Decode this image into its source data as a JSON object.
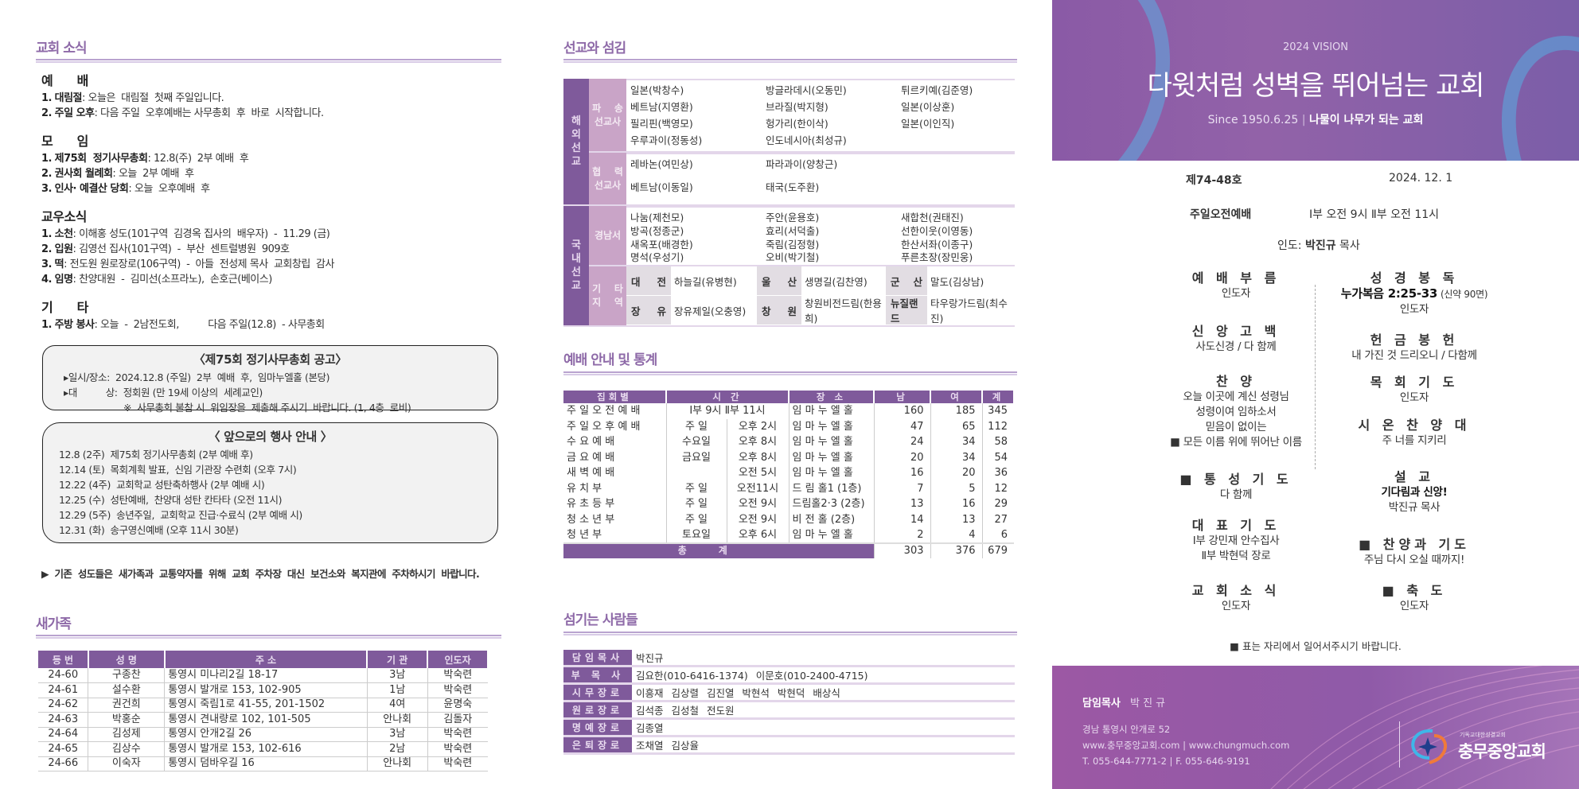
{
  "left": {
    "news_title": "교회 소식",
    "groups": [
      {
        "title": "예      배",
        "items": [
          {
            "num": "1.",
            "label": "대림절",
            "text": "오늘은  대림절  첫째 주일입니다."
          },
          {
            "num": "2.",
            "label": "주일 오후",
            "text": "다음 주일  오후예배는 사무총회  후  바로  시작합니다."
          }
        ]
      },
      {
        "title": "모      임",
        "items": [
          {
            "num": "1.",
            "label": "제75회  정기사무총회",
            "text": "12.8(주)  2부 예배  후"
          },
          {
            "num": "2.",
            "label": "권사회 월례회",
            "text": "오늘  2부 예배  후"
          },
          {
            "num": "3.",
            "label": "인사· 예결산 당회",
            "text": "오늘  오후예배  후"
          }
        ]
      },
      {
        "title": "교우소식",
        "items": [
          {
            "num": "1.",
            "label": "소천",
            "text": "이해홍 성도(101구역  김경옥 집사의  배우자)  -  11.29 (금)"
          },
          {
            "num": "2.",
            "label": "입원",
            "text": "김영선 집사(101구역)  -  부산  센트럴병원  909호"
          },
          {
            "num": "3.",
            "label": "떡",
            "text": "전도원 원로장로(106구역)  -  아들  전성제 목사  교회창립  감사"
          },
          {
            "num": "4.",
            "label": "임명",
            "text": "찬양대원  -  김미선(소프라노),  손호근(베이스)"
          }
        ]
      },
      {
        "title": "기      타",
        "items": [
          {
            "num": "1.",
            "label": "주방 봉사",
            "text": "오늘  -  2남전도회,          다음 주일(12.8)  - 사무총회"
          }
        ]
      }
    ],
    "assembly_box": {
      "title": "〈제75회  정기사무총회  공고〉",
      "lines": [
        "▸일시/장소:  2024.12.8 (주일)  2부  예배  후,  임마누엘홀 (본당)",
        "▸대          상:  정회원 (만 19세 이상의  세례교인)",
        "                     ※  사무총회 불참 시  위임장을  제출해 주시기  바랍니다. (1, 4층  로비)"
      ]
    },
    "events_box": {
      "title": "〈 앞으로의 행사 안내 〉",
      "lines": [
        "12.8 (2주)  제75회 정기사무총회 (2부 예배 후)",
        "12.14 (토)  목회계획 발표,  신임 기관장 수련회 (오후 7시)",
        "12.22 (4주)  교회학교 성탄축하행사 (2부 예배 시)",
        "12.25 (수)  성탄예배,  찬양대 성탄 칸타타 (오전 11시)",
        "12.29 (5주)  송년주일,  교회학교 진급·수료식 (2부 예배 시)",
        "12.31 (화)  송구영신예배 (오후 11시 30분)"
      ]
    },
    "parking_notice": "▶  기존  성도들은  새가족과  교통약자를  위해  교회  주차장  대신  보건소와  복지관에  주차하시기  바랍니다.",
    "newfamily_title": "새가족",
    "newfamily_headers": [
      "등 번",
      "성 명",
      "주 소",
      "기 관",
      "인도자"
    ],
    "newfamily_rows": [
      [
        "24-60",
        "구종찬",
        "통영시 미나리2길  18-17",
        "3남",
        "박숙련"
      ],
      [
        "24-61",
        "설수환",
        "통영시 발개로 153,  102-905",
        "1남",
        "박숙련"
      ],
      [
        "24-62",
        "권건희",
        "통영시 죽림1로  41-55,  201-1502",
        "4여",
        "윤명숙"
      ],
      [
        "24-63",
        "박홍순",
        "통영시 견내량로  102,  101-505",
        "안나회",
        "김돌자"
      ],
      [
        "24-64",
        "김성제",
        "통영시 안개2길  26",
        "3남",
        "박숙련"
      ],
      [
        "24-65",
        "김상수",
        "통영시 발개로 153,  102-616",
        "2남",
        "박숙련"
      ],
      [
        "24-66",
        "이숙자",
        "통영시 덤바우길  16",
        "안나회",
        "박숙련"
      ]
    ]
  },
  "center": {
    "mission_title": "선교와 섬김",
    "overseas_label": "해\n외\n선\n교",
    "domestic_label": "국\n내\n선\n교",
    "sent_label": "파    송\n선교사",
    "sent": [
      "일본(박창수)",
      "방글라데시(오동민)",
      "튀르키예(김준영)",
      "베트남(지영환)",
      "브라질(박지형)",
      "일본(이상훈)",
      "필리핀(백영모)",
      "헝가리(한이삭)",
      "일본(이인직)",
      "우루과이(정동성)",
      "인도네시아(최성규)",
      ""
    ],
    "coop_label": "협    력\n선교사",
    "coop": [
      "레바논(여민상)",
      "파라과이(양창근)",
      "",
      "베트남(이동일)",
      "태국(도주환)",
      ""
    ],
    "gyeongnam_label": "경남서",
    "gyeongnam": [
      "나눔(제천모)",
      "주안(윤용호)",
      "새합천(권태진)",
      "방곡(정종군)",
      "효리(서덕출)",
      "선한이웃(이영동)",
      "새옥포(배경한)",
      "죽림(김정형)",
      "한산서좌(이종구)",
      "명석(우성기)",
      "오비(박기철)",
      "푸른초장(장민웅)"
    ],
    "other_label": "기    타\n지    역",
    "other": [
      [
        [
          "대",
          "전"
        ],
        "하늘길(유병현)"
      ],
      [
        [
          "울",
          "산"
        ],
        "생명길(김찬영)"
      ],
      [
        [
          "군",
          "산"
        ],
        "말도(김상남)"
      ],
      [
        [
          "장",
          "유"
        ],
        "장유제일(오충영)"
      ],
      [
        [
          "창",
          "원"
        ],
        "창원비전드림(한용희)"
      ],
      [
        [
          "뉴질랜드"
        ],
        "타우랑가드림(최수진)"
      ]
    ],
    "worship_title": "예배 안내 및 통계",
    "worship_headers": [
      "집회별",
      "시 간",
      "장 소",
      "남",
      "여",
      "계"
    ],
    "worship_rows": [
      [
        "주 일 오 전 예 배",
        "Ⅰ부  9시    Ⅱ부  11시",
        "",
        "임 마 누 엘 홀",
        "160",
        "185",
        "345"
      ],
      [
        "주 일 오 후 예 배",
        "주    일",
        "오후  2시",
        "임 마 누 엘 홀",
        "47",
        "65",
        "112"
      ],
      [
        "수     요     예     배",
        "수요일",
        "오후  8시",
        "임 마 누 엘 홀",
        "24",
        "34",
        "58"
      ],
      [
        "금     요     예     배",
        "금요일",
        "오후  8시",
        "임 마 누 엘 홀",
        "20",
        "34",
        "54"
      ],
      [
        "새     벽     예     배",
        "",
        "오전  5시",
        "임 마 누 엘 홀",
        "16",
        "20",
        "36"
      ],
      [
        "유          치          부",
        "주    일",
        "오전11시",
        "드  림  홀1  (1층)",
        "7",
        "5",
        "12"
      ],
      [
        "유     초     등     부",
        "주    일",
        "오전  9시",
        "드림홀2·3  (2층)",
        "13",
        "16",
        "29"
      ],
      [
        "청     소     년     부",
        "주    일",
        "오전  9시",
        "비    전    홀 (2층)",
        "14",
        "13",
        "27"
      ],
      [
        "청          년          부",
        "토요일",
        "오후  6시",
        "임 마 누 엘 홀",
        "2",
        "4",
        "6"
      ]
    ],
    "worship_total": {
      "label": "총계",
      "values": [
        "303",
        "376",
        "679"
      ]
    },
    "servants_title": "섬기는 사람들",
    "servants": [
      [
        "담임목사",
        "박진규"
      ],
      [
        "부 목 사",
        "김요한(010-6416-1374)   이문호(010-2400-4715)"
      ],
      [
        "시무장로",
        "이흥재  김상렬  김진열  박현석  박현덕  배상식"
      ],
      [
        "원로장로",
        "김석종  김성철  전도원"
      ],
      [
        "명예장로",
        "김종열"
      ],
      [
        "은퇴장로",
        "조채열  김상율"
      ]
    ]
  },
  "right": {
    "vision_label": "2024 VISION",
    "slogan": "다윗처럼 성벽을 뛰어넘는 교회",
    "since": "Since 1950.6.25",
    "motto": "나물이 나무가 되는 교회",
    "issue": "제74-48호",
    "date": "2024.  12.  1",
    "service_name": "주일오전예배",
    "service_times": "Ⅰ부  오전 9시    Ⅱ부  오전 11시",
    "leader_label": "인도:",
    "leader_name": "박진규",
    "leader_title": "목사",
    "order_left": [
      {
        "title": "예 배 부 름",
        "lines": [
          "인도자"
        ]
      },
      {
        "title": "신 앙 고 백",
        "lines": [
          "사도신경  /  다 함께"
        ]
      },
      {
        "title": "찬        양",
        "lines": [
          "오늘 이곳에  계신 성령님",
          "성령이여 임하소서",
          "믿음이 없이는",
          "■  모든 이름 위에 뛰어난 이름"
        ]
      },
      {
        "title": "■ 통 성 기 도",
        "lines": [
          "다 함께"
        ]
      },
      {
        "title": "대 표 기 도",
        "lines": [
          "Ⅰ부  강민재 안수집사",
          "Ⅱ부  박현덕 장로"
        ]
      },
      {
        "title": "교 회 소 식",
        "lines": [
          "인도자"
        ]
      }
    ],
    "order_right": [
      {
        "title": "성 경 봉 독",
        "scripture": "누가복음 2:25-33",
        "scripture_note": "(신약 90면)",
        "lines": [
          "인도자"
        ]
      },
      {
        "title": "헌 금 봉 헌",
        "lines": [
          "내  가진  것  드리오니  /  다함께"
        ]
      },
      {
        "title": "목 회 기 도",
        "lines": [
          "인도자"
        ]
      },
      {
        "title": "시 온 찬 양 대",
        "lines": [
          "주  너를  지키리"
        ]
      },
      {
        "title": "설        교",
        "sermon": "기다림과 신앙!",
        "lines": [
          "박진규 목사"
        ]
      },
      {
        "title": "■ 찬양과  기도",
        "lines": [
          "주님  다시  오실  때까지!"
        ]
      },
      {
        "title": "■ 축        도",
        "lines": [
          "인도자"
        ]
      }
    ],
    "stand_note": "■ 표는  자리에서  일어서주시기  바랍니다.",
    "footer": {
      "pastor_label": "담임목사",
      "pastor_name": "박 진 규",
      "address": "경남 통영시 안개로 52",
      "web": "www.충무중앙교회.com  |  www.chungmuch.com",
      "phone": "T. 055-644-7771-2  |  F. 055-646-9191",
      "logo_small": "기독교대한성결교회",
      "logo_name": "충무중앙교회"
    }
  },
  "colors": {
    "accent": "#7f5a9b",
    "accent_light": "#c9a4c7",
    "heading": "#8e6aa8",
    "rule": "#b9a3cf"
  }
}
